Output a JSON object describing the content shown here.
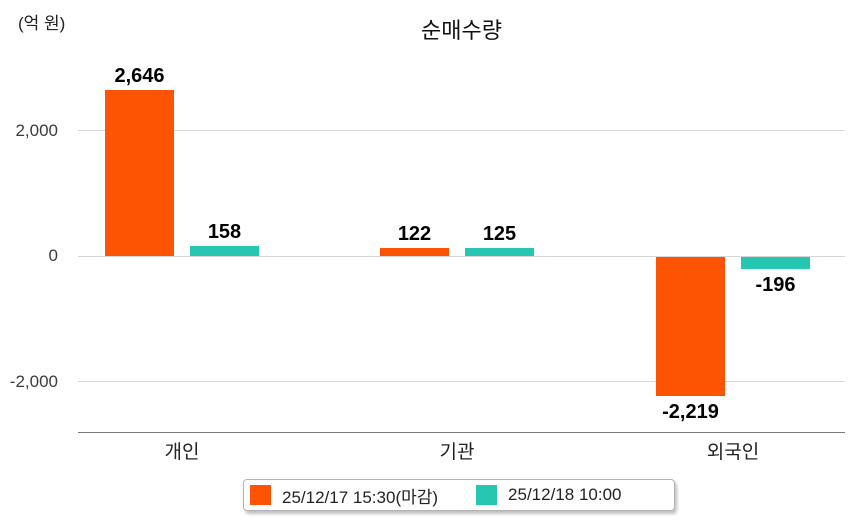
{
  "title": "순매수량",
  "unit_label": "(억 원)",
  "colors": {
    "series1": "#FC5402",
    "series2": "#26C6B2",
    "grid": "#D6D6D6",
    "axis": "#7A7A7A"
  },
  "chart_data": {
    "type": "bar",
    "title": "순매수량",
    "ylabel": "(억 원)",
    "categories": [
      "개인",
      "기관",
      "외국인"
    ],
    "series": [
      {
        "name": "25/12/17 15:30(마감)",
        "color": "#FC5402",
        "values": [
          2646,
          122,
          -2219
        ],
        "display": [
          "2,646",
          "122",
          "-2,219"
        ]
      },
      {
        "name": "25/12/18 10:00",
        "color": "#26C6B2",
        "values": [
          158,
          125,
          -196
        ],
        "display": [
          "158",
          "125",
          "-196"
        ]
      }
    ],
    "yticks": [
      {
        "value": 2000,
        "label": "2,000"
      },
      {
        "value": 0,
        "label": "0"
      },
      {
        "value": -2000,
        "label": "-2,000"
      }
    ],
    "ylim": [
      -2700,
      2900
    ],
    "grid": true,
    "legend_position": "bottom"
  }
}
